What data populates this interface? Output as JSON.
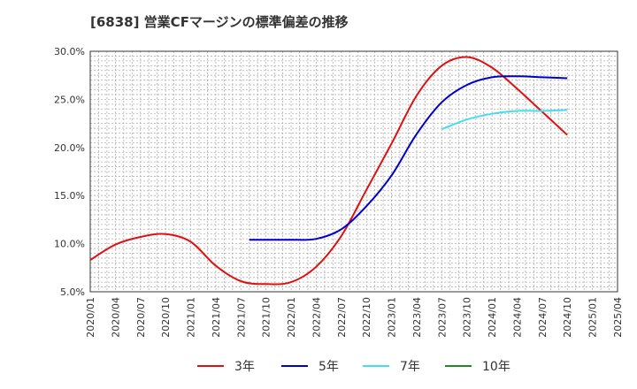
{
  "chart_data": {
    "type": "line",
    "title": "[6838]  営業CFマージンの標準偏差の推移",
    "xlabel": "",
    "ylabel": "",
    "ylim": [
      5.0,
      30.0
    ],
    "grid": true,
    "legend_position": "bottom",
    "x_ticks": [
      "2020/01",
      "2020/04",
      "2020/07",
      "2020/10",
      "2021/01",
      "2021/04",
      "2021/07",
      "2021/10",
      "2022/01",
      "2022/04",
      "2022/07",
      "2022/10",
      "2023/01",
      "2023/04",
      "2023/07",
      "2023/10",
      "2024/01",
      "2024/04",
      "2024/07",
      "2024/10",
      "2025/01",
      "2025/04"
    ],
    "y_ticks": [
      5.0,
      10.0,
      15.0,
      20.0,
      25.0,
      30.0
    ],
    "y_tick_labels": [
      "5.0%",
      "10.0%",
      "15.0%",
      "20.0%",
      "25.0%",
      "30.0%"
    ],
    "series": [
      {
        "name": "3年",
        "color": "#dd1111",
        "points": [
          [
            "2020/01",
            8.3
          ],
          [
            "2020/04",
            9.9
          ],
          [
            "2020/07",
            10.7
          ],
          [
            "2020/10",
            11.0
          ],
          [
            "2021/01",
            10.2
          ],
          [
            "2021/04",
            7.7
          ],
          [
            "2021/07",
            6.1
          ],
          [
            "2021/10",
            5.8
          ],
          [
            "2022/01",
            6.0
          ],
          [
            "2022/04",
            7.6
          ],
          [
            "2022/07",
            10.8
          ],
          [
            "2022/10",
            15.6
          ],
          [
            "2023/01",
            20.4
          ],
          [
            "2023/04",
            25.4
          ],
          [
            "2023/07",
            28.5
          ],
          [
            "2023/10",
            29.4
          ],
          [
            "2024/01",
            28.3
          ],
          [
            "2024/04",
            26.1
          ],
          [
            "2024/07",
            23.7
          ],
          [
            "2024/10",
            21.3
          ]
        ]
      },
      {
        "name": "5年",
        "color": "#0000cc",
        "points": [
          [
            "2021/08",
            10.4
          ],
          [
            "2021/10",
            10.4
          ],
          [
            "2022/01",
            10.4
          ],
          [
            "2022/04",
            10.5
          ],
          [
            "2022/07",
            11.5
          ],
          [
            "2022/10",
            13.9
          ],
          [
            "2023/01",
            17.1
          ],
          [
            "2023/04",
            21.4
          ],
          [
            "2023/07",
            24.7
          ],
          [
            "2023/10",
            26.5
          ],
          [
            "2024/01",
            27.3
          ],
          [
            "2024/04",
            27.4
          ],
          [
            "2024/07",
            27.3
          ],
          [
            "2024/10",
            27.2
          ]
        ]
      },
      {
        "name": "7年",
        "color": "#44ddee",
        "points": [
          [
            "2023/07",
            21.9
          ],
          [
            "2023/10",
            22.9
          ],
          [
            "2024/01",
            23.5
          ],
          [
            "2024/04",
            23.8
          ],
          [
            "2024/07",
            23.8
          ],
          [
            "2024/10",
            23.9
          ]
        ]
      },
      {
        "name": "10年",
        "color": "#228822",
        "points": []
      }
    ]
  }
}
